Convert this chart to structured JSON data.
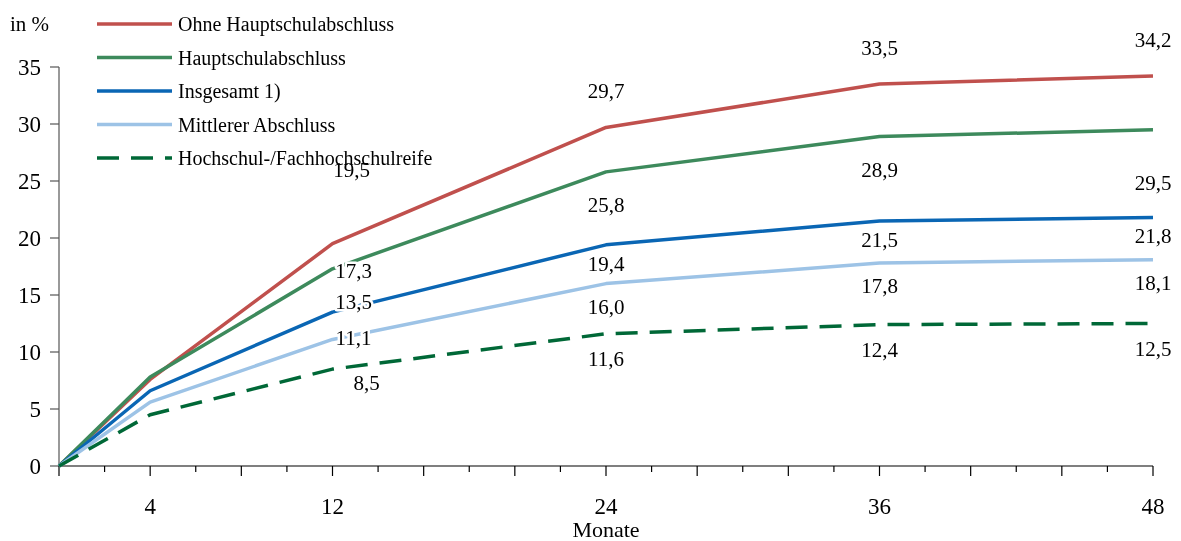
{
  "chart_data": {
    "type": "line",
    "xlabel": "Monate",
    "ylabel": "in %",
    "x": [
      0,
      4,
      12,
      24,
      36,
      48
    ],
    "xlim": [
      0,
      48
    ],
    "xticks": [
      {
        "value": 0,
        "label": null
      },
      {
        "value": 2,
        "label": null
      },
      4,
      {
        "value": 6,
        "label": null
      },
      {
        "value": 8,
        "label": null
      },
      {
        "value": 10,
        "label": null
      },
      12,
      {
        "value": 14,
        "label": null
      },
      {
        "value": 16,
        "label": null
      },
      {
        "value": 18,
        "label": null
      },
      {
        "value": 20,
        "label": null
      },
      {
        "value": 22,
        "label": null
      },
      24,
      {
        "value": 26,
        "label": null
      },
      {
        "value": 28,
        "label": null
      },
      {
        "value": 30,
        "label": null
      },
      {
        "value": 32,
        "label": null
      },
      {
        "value": 34,
        "label": null
      },
      36,
      {
        "value": 38,
        "label": null
      },
      {
        "value": 40,
        "label": null
      },
      {
        "value": 42,
        "label": null
      },
      {
        "value": 44,
        "label": null
      },
      {
        "value": 46,
        "label": null
      },
      48
    ],
    "ylim": [
      0,
      35
    ],
    "yticks": [
      0,
      5,
      10,
      15,
      20,
      25,
      30,
      35
    ],
    "grid": false,
    "legend": "top left",
    "marker": "none",
    "series": [
      {
        "name": "Ohne Hauptschulabschluss",
        "color": "#c0504d",
        "line_style": "solid",
        "values": [
          0,
          7.6,
          19.5,
          29.7,
          33.5,
          34.2
        ],
        "value_labels": [
          null,
          null,
          "19,5",
          "29,7",
          "33,5",
          "34,2"
        ]
      },
      {
        "name": "Hauptschulabschluss",
        "color": "#3d8a5c",
        "line_style": "solid",
        "values": [
          0,
          7.8,
          17.3,
          25.8,
          28.9,
          29.5
        ],
        "value_labels": [
          null,
          null,
          "17,3",
          "25,8",
          "28,9",
          "29,5"
        ]
      },
      {
        "name": "Insgesamt 1)",
        "color": "#0a66b4",
        "line_style": "solid",
        "values": [
          0,
          6.6,
          13.5,
          19.4,
          21.5,
          21.8
        ],
        "value_labels": [
          null,
          null,
          "13,5",
          "19,4",
          "21,5",
          "21,8"
        ]
      },
      {
        "name": "Mittlerer Abschluss",
        "color": "#9dc3e6",
        "line_style": "solid",
        "values": [
          0,
          5.6,
          11.1,
          16.0,
          17.8,
          18.1
        ],
        "value_labels": [
          null,
          null,
          "11,1",
          "16,0",
          "17,8",
          "18,1"
        ]
      },
      {
        "name": "Hochschul-/Fachhochschulreife",
        "color": "#006837",
        "line_style": "dashed",
        "values": [
          0,
          4.5,
          8.5,
          11.6,
          12.4,
          12.5
        ],
        "value_labels": [
          null,
          null,
          "8,5",
          "11,6",
          "12,4",
          "12,5"
        ]
      }
    ]
  }
}
